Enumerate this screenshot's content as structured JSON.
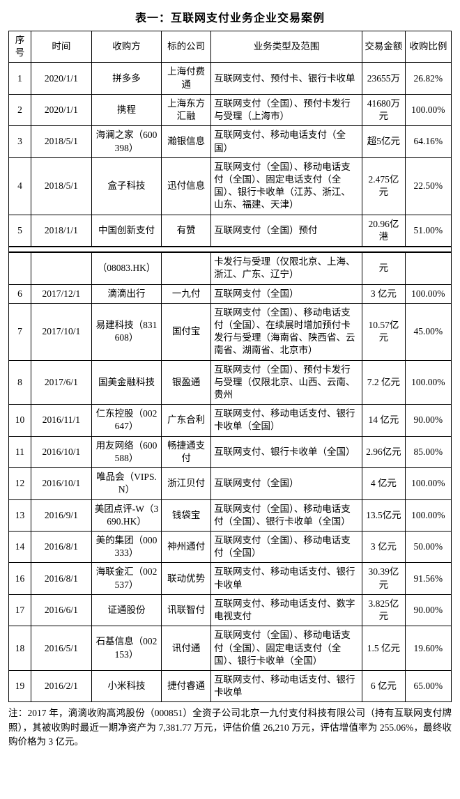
{
  "title": "表一：互联网支付业务企业交易案例",
  "columns": [
    "序号",
    "时间",
    "收购方",
    "标的公司",
    "业务类型及范围",
    "交易金额",
    "收购比例"
  ],
  "rows_top": [
    {
      "seq": "1",
      "time": "2020/1/1",
      "buyer": "拼多多",
      "target": "上海付费通",
      "scope": "互联网支付、预付卡、银行卡收单",
      "amt": "23655万",
      "pct": "26.82%"
    },
    {
      "seq": "2",
      "time": "2020/1/1",
      "buyer": "携程",
      "target": "上海东方汇融",
      "scope": "互联网支付（全国）、预付卡发行与受理（上海市）",
      "amt": "41680万元",
      "pct": "100.00%"
    },
    {
      "seq": "3",
      "time": "2018/5/1",
      "buyer": "海澜之家（600398）",
      "target": "瀚银信息",
      "scope": "互联网支付、移动电话支付（全国）",
      "amt": "超5亿元",
      "pct": "64.16%"
    },
    {
      "seq": "4",
      "time": "2018/5/1",
      "buyer": "盒子科技",
      "target": "迅付信息",
      "scope": "互联网支付（全国）、移动电话支付（全国）、固定电话支付（全国）、银行卡收单（江苏、浙江、山东、福建、天津）",
      "amt": "2.475亿元",
      "pct": "22.50%"
    },
    {
      "seq": "5",
      "time": "2018/1/1",
      "buyer": "中国创新支付",
      "target": "有赞",
      "scope": "互联网支付（全国）预付",
      "amt": "20.96亿港",
      "pct": "51.00%"
    }
  ],
  "cont_row": {
    "seq": "",
    "time": "",
    "buyer": "（08083.HK）",
    "target": "",
    "scope": "卡发行与受理（仅限北京、上海、浙江、广东、辽宁）",
    "amt": "元",
    "pct": ""
  },
  "rows_bottom": [
    {
      "seq": "6",
      "time": "2017/12/1",
      "buyer": "滴滴出行",
      "target": "一九付",
      "scope": "互联网支付（全国）",
      "amt": "3 亿元",
      "pct": "100.00%"
    },
    {
      "seq": "7",
      "time": "2017/10/1",
      "buyer": "易建科技（831608）",
      "target": "国付宝",
      "scope": "互联网支付（全国）、移动电话支付（全国）、在续展时增加预付卡发行与受理（海南省、陕西省、云南省、湖南省、北京市）",
      "amt": "10.57亿元",
      "pct": "45.00%"
    },
    {
      "seq": "8",
      "time": "2017/6/1",
      "buyer": "国美金融科技",
      "target": "银盈通",
      "scope": "互联网支付（全国）、预付卡发行与受理（仅限北京、山西、云南、贵州",
      "amt": "7.2 亿元",
      "pct": "100.00%"
    },
    {
      "seq": "10",
      "time": "2016/11/1",
      "buyer": "仁东控股（002647）",
      "target": "广东合利",
      "scope": "互联网支付、移动电话支付、银行卡收单（全国）",
      "amt": "14 亿元",
      "pct": "90.00%"
    },
    {
      "seq": "11",
      "time": "2016/10/1",
      "buyer": "用友网络（600588）",
      "target": "畅捷通支付",
      "scope": "互联网支付、银行卡收单（全国）",
      "amt": "2.96亿元",
      "pct": "85.00%"
    },
    {
      "seq": "12",
      "time": "2016/10/1",
      "buyer": "唯品会（VIPS.N）",
      "target": "浙江贝付",
      "scope": "互联网支付（全国）",
      "amt": "4 亿元",
      "pct": "100.00%"
    },
    {
      "seq": "13",
      "time": "2016/9/1",
      "buyer": "美团点评-W（3690.HK）",
      "target": "钱袋宝",
      "scope": "互联网支付（全国）、移动电话支付（全国）、银行卡收单（全国）",
      "amt": "13.5亿元",
      "pct": "100.00%"
    },
    {
      "seq": "14",
      "time": "2016/8/1",
      "buyer": "美的集团（000333）",
      "target": "神州通付",
      "scope": "互联网支付（全国）、移动电话支付（全国）",
      "amt": "3 亿元",
      "pct": "50.00%"
    },
    {
      "seq": "16",
      "time": "2016/8/1",
      "buyer": "海联金汇（002537）",
      "target": "联动优势",
      "scope": "互联网支付、移动电话支付、银行卡收单",
      "amt": "30.39亿元",
      "pct": "91.56%"
    },
    {
      "seq": "17",
      "time": "2016/6/1",
      "buyer": "证通股份",
      "target": "讯联智付",
      "scope": "互联网支付、移动电话支付、数字电视支付",
      "amt": "3.825亿元",
      "pct": "90.00%"
    },
    {
      "seq": "18",
      "time": "2016/5/1",
      "buyer": "石基信息（002153）",
      "target": "讯付通",
      "scope": "互联网支付（全国）、移动电话支付（全国）、固定电话支付（全国）、银行卡收单（全国）",
      "amt": "1.5 亿元",
      "pct": "19.60%"
    },
    {
      "seq": "19",
      "time": "2016/2/1",
      "buyer": "小米科技",
      "target": "捷付睿通",
      "scope": "互联网支付、移动电话支付、银行卡收单",
      "amt": "6 亿元",
      "pct": "65.00%"
    }
  ],
  "footnote": "注：2017 年，滴滴收购高鸿股份（000851）全资子公司北京一九付支付科技有限公司（持有互联网支付牌照），其被收购时最近一期净资产为 7,381.77 万元，评估价值 26,210 万元，评估增值率为 255.06%，最终收购价格为 3 亿元。"
}
